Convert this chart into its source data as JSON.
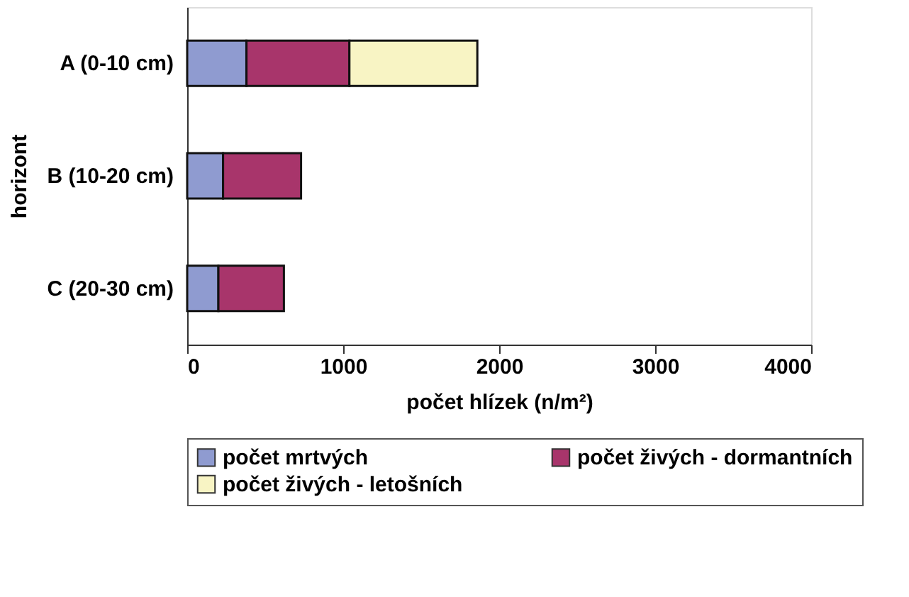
{
  "chart_data": {
    "type": "bar",
    "orientation": "horizontal",
    "stacked": true,
    "xlabel": "počet hlízek (n/m²)",
    "ylabel": "horizont",
    "categories": [
      "A (0-10 cm)",
      "B (10-20 cm)",
      "C (20-30 cm)"
    ],
    "series": [
      {
        "name": "počet mrtvých",
        "color": "#8f9bd0",
        "values": [
          380,
          230,
          200
        ]
      },
      {
        "name": "počet živých - dormantních",
        "color": "#a8356b",
        "values": [
          660,
          500,
          420
        ]
      },
      {
        "name": "počet živých - letošních",
        "color": "#f8f4c4",
        "values": [
          820,
          null,
          null
        ]
      }
    ],
    "xlim": [
      0,
      4000
    ],
    "xticks": [
      0,
      1000,
      2000,
      3000,
      4000
    ],
    "grid": false,
    "legend": "bottom"
  }
}
